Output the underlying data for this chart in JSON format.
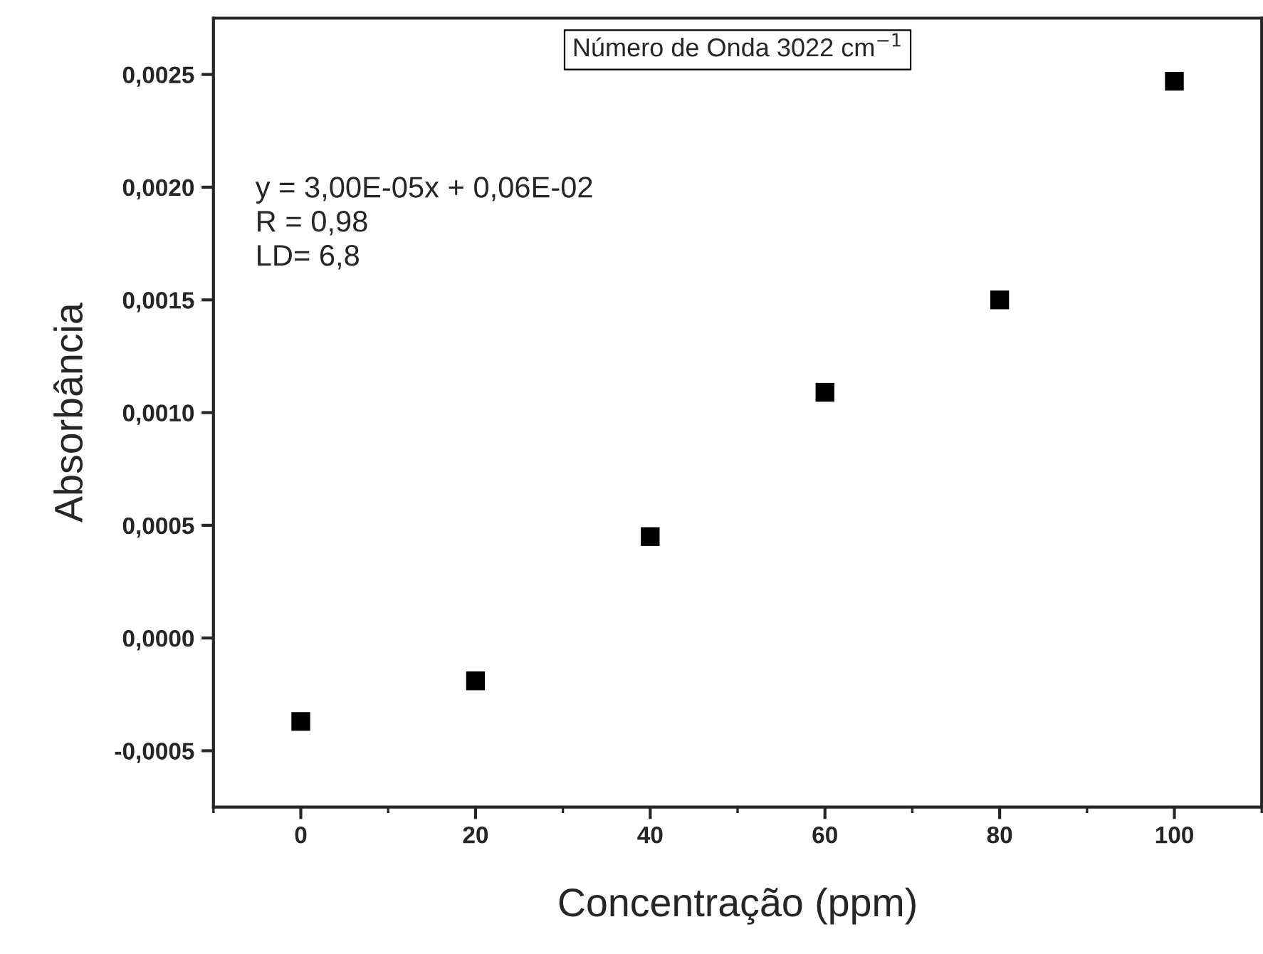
{
  "chart_data": {
    "type": "scatter",
    "xlabel": "Concentração (ppm)",
    "ylabel": "Absorbância",
    "x": [
      0,
      20,
      40,
      60,
      80,
      100
    ],
    "series": [
      {
        "color": "#000000",
        "values": [
          -0.00037,
          -0.00019,
          0.00045,
          0.00109,
          0.0015,
          0.00247
        ]
      }
    ],
    "marker": "square",
    "xlim": [
      -10,
      110
    ],
    "xticks": [
      0,
      20,
      40,
      60,
      80,
      100
    ],
    "ylim": [
      -0.00075,
      0.00275
    ],
    "yticks": [
      {
        "value": -0.0005,
        "label": "-0,0005"
      },
      {
        "value": 0,
        "label": "0,0000"
      },
      {
        "value": 0.0005,
        "label": "0,0005"
      },
      {
        "value": 0.001,
        "label": "0,0010"
      },
      {
        "value": 0.0015,
        "label": "0,0015"
      },
      {
        "value": 0.002,
        "label": "0,0020"
      },
      {
        "value": 0.0025,
        "label": "0,0025"
      }
    ],
    "annotations": [
      "Número de Onda 3022 cm$^{−1}$",
      "y = 3,00E-05x + 0,06E-02\nR = 0,98\nLD= 6,8"
    ],
    "grid": false,
    "legend": false
  }
}
